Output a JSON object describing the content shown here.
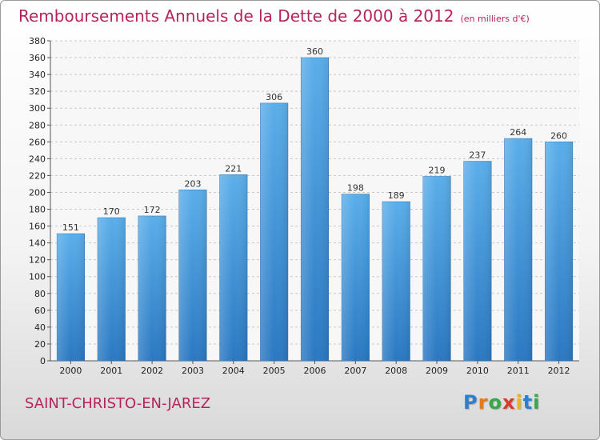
{
  "chart_data": {
    "type": "bar",
    "title": "Remboursements Annuels de la Dette de 2000 à 2012",
    "subtitle": "(en milliers d'€)",
    "categories": [
      "2000",
      "2001",
      "2002",
      "2003",
      "2004",
      "2005",
      "2006",
      "2007",
      "2008",
      "2009",
      "2010",
      "2011",
      "2012"
    ],
    "values": [
      151,
      170,
      172,
      203,
      221,
      306,
      360,
      198,
      189,
      219,
      237,
      264,
      260
    ],
    "ylim": [
      0,
      380
    ],
    "yticks": [
      0,
      20,
      40,
      60,
      80,
      100,
      120,
      140,
      160,
      180,
      200,
      220,
      240,
      260,
      280,
      300,
      320,
      340,
      360,
      380
    ],
    "grid": true,
    "bar_color": "#4a9ee0",
    "xlabel": "",
    "ylabel": ""
  },
  "footer": {
    "commune": "SAINT-CHRISTO-EN-JAREZ",
    "logo_letters": [
      {
        "char": "P",
        "color": "#2f7fd0"
      },
      {
        "char": "r",
        "color": "#e07b1e"
      },
      {
        "char": "o",
        "color": "#3aa64a"
      },
      {
        "char": "x",
        "color": "#d93a2b"
      },
      {
        "char": "i",
        "color": "#e6b820"
      },
      {
        "char": "t",
        "color": "#2f7fd0"
      },
      {
        "char": "i",
        "color": "#3aa64a"
      }
    ]
  }
}
